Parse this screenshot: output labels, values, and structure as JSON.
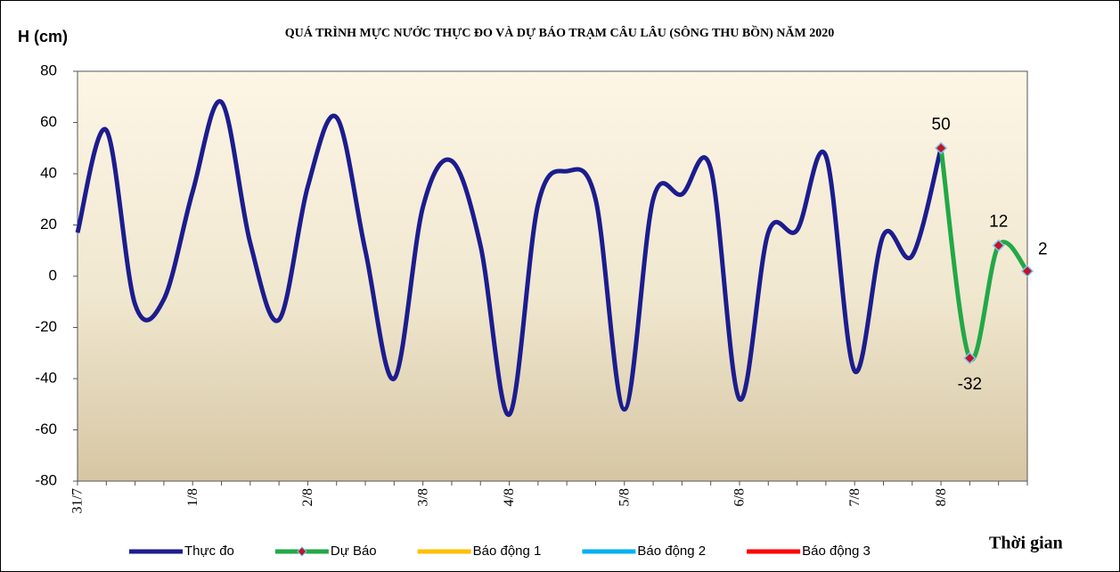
{
  "chart_data": {
    "type": "line",
    "title": "QUÁ TRÌNH MỰC NƯỚC THỰC ĐO VÀ DỰ BÁO TRẠM CÂU LÂU (SÔNG THU BỒN) NĂM  2020",
    "y_label": "H (cm)",
    "x_label": "Thời gian",
    "categories": [
      "31/7",
      null,
      null,
      null,
      "1/8",
      null,
      null,
      null,
      "2/8",
      null,
      null,
      null,
      "3/8",
      null,
      null,
      "4/8",
      null,
      null,
      null,
      "5/8",
      null,
      null,
      null,
      "6/8",
      null,
      null,
      null,
      "7/8",
      null,
      null,
      "8/8",
      null,
      null,
      null
    ],
    "series": [
      {
        "name": "Thực đo",
        "color": "#1c1c8f",
        "values": [
          17,
          57,
          -11,
          -9,
          33,
          68,
          13,
          -17,
          35,
          62,
          10,
          -40,
          27,
          45,
          12,
          -54,
          28,
          41,
          30,
          -52,
          30,
          32,
          42,
          -48,
          17,
          18,
          47,
          -37,
          16,
          8,
          50,
          null,
          null,
          null
        ]
      },
      {
        "name": "Dự Báo",
        "color": "#22a847",
        "marker": "diamond",
        "values": [
          null,
          null,
          null,
          null,
          null,
          null,
          null,
          null,
          null,
          null,
          null,
          null,
          null,
          null,
          null,
          null,
          null,
          null,
          null,
          null,
          null,
          null,
          null,
          null,
          null,
          null,
          null,
          null,
          null,
          null,
          50,
          -32,
          12,
          2
        ],
        "value_labels": [
          null,
          null,
          null,
          null,
          null,
          null,
          null,
          null,
          null,
          null,
          null,
          null,
          null,
          null,
          null,
          null,
          null,
          null,
          null,
          null,
          null,
          null,
          null,
          null,
          null,
          null,
          null,
          null,
          null,
          null,
          "50",
          "-32",
          "12",
          "2"
        ]
      }
    ],
    "legend_only": [
      {
        "name": "Báo động 1",
        "color": "#ffc000"
      },
      {
        "name": "Báo động 2",
        "color": "#00b0f0"
      },
      {
        "name": "Báo động 3",
        "color": "#ff0000"
      }
    ],
    "ylim": [
      -80,
      80
    ],
    "yticks": [
      -80,
      -60,
      -40,
      -20,
      0,
      20,
      40,
      60,
      80
    ],
    "legend": "bottom"
  }
}
